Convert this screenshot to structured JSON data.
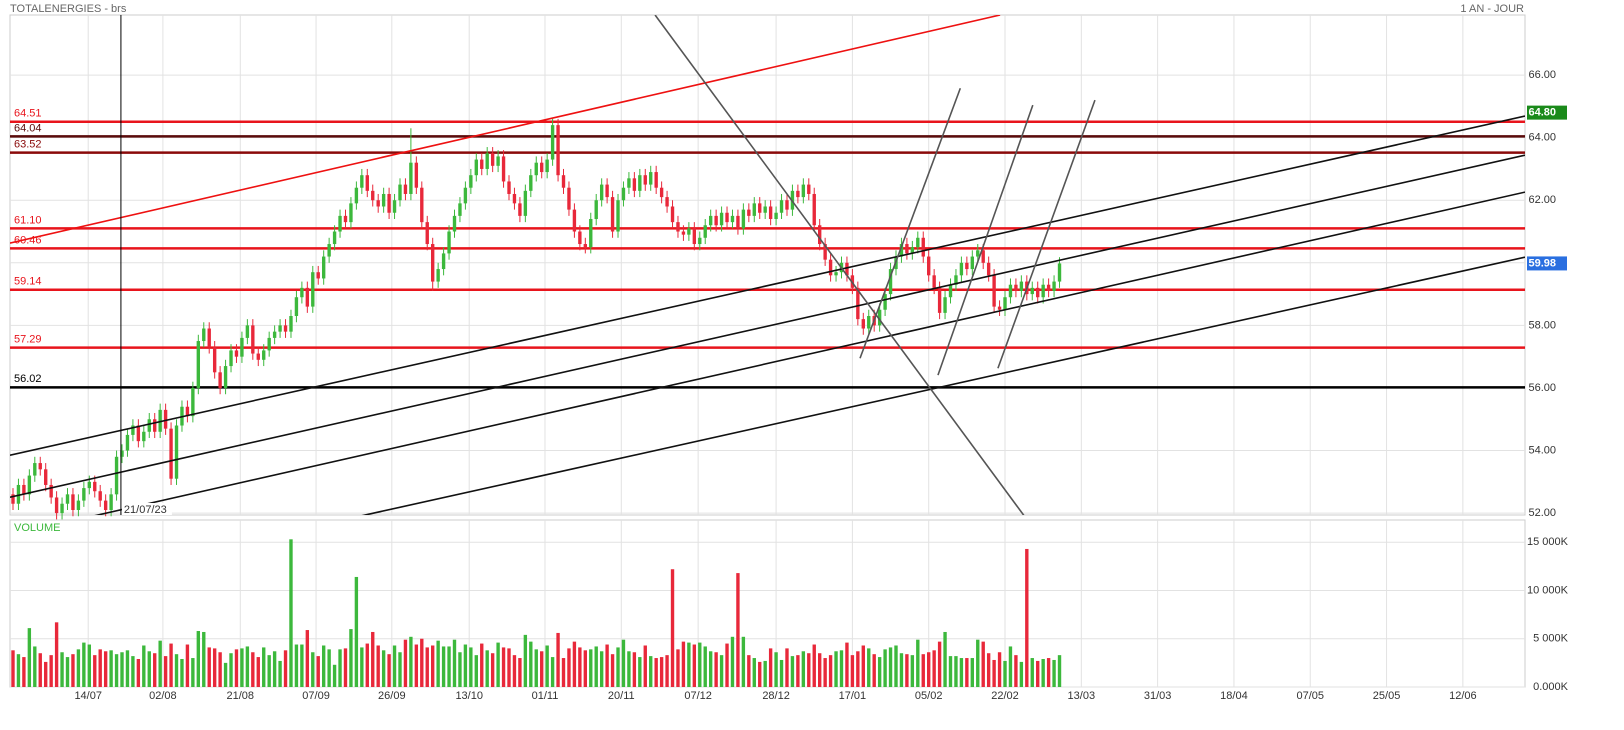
{
  "chart_data": {
    "type": "candlestick",
    "title": "TOTALENERGIES - brs",
    "period": "1 AN - JOUR",
    "up_color": "#3cb83c",
    "down_color": "#e8283a",
    "grid": true,
    "xlim": [
      -0.55,
      277.4
    ],
    "xticks": [
      {
        "value": 13.8,
        "label": "14/07"
      },
      {
        "value": 27.5,
        "label": "02/08"
      },
      {
        "value": 41.7,
        "label": "21/08"
      },
      {
        "value": 55.6,
        "label": "07/09"
      },
      {
        "value": 69.5,
        "label": "26/09"
      },
      {
        "value": 83.7,
        "label": "13/10"
      },
      {
        "value": 97.6,
        "label": "01/11"
      },
      {
        "value": 111.6,
        "label": "20/11"
      },
      {
        "value": 125.7,
        "label": "07/12"
      },
      {
        "value": 140,
        "label": "28/12"
      },
      {
        "value": 154,
        "label": "17/01"
      },
      {
        "value": 168,
        "label": "05/02"
      },
      {
        "value": 182,
        "label": "22/02"
      },
      {
        "value": 196,
        "label": "13/03"
      },
      {
        "value": 210,
        "label": "31/03"
      },
      {
        "value": 224,
        "label": "18/04"
      },
      {
        "value": 238,
        "label": "07/05"
      },
      {
        "value": 252,
        "label": "25/05"
      },
      {
        "value": 266,
        "label": "12/06"
      }
    ],
    "ylim": [
      51.94,
      67.92
    ],
    "yticks": [
      {
        "value": 52,
        "label": "52.00"
      },
      {
        "value": 54,
        "label": "54.00"
      },
      {
        "value": 56,
        "label": "56.00"
      },
      {
        "value": 58,
        "label": "58.00"
      },
      {
        "value": 60,
        "label": "60.00"
      },
      {
        "value": 62,
        "label": "62.00"
      },
      {
        "value": 64,
        "label": "64.00"
      },
      {
        "value": 66,
        "label": "66.00"
      }
    ],
    "open": [
      52.6,
      52.3,
      52.9,
      52.6,
      53.2,
      53.6,
      53.4,
      52.9,
      52.5,
      52.0,
      52.3,
      52.6,
      52.1,
      52.4,
      52.8,
      53.0,
      52.7,
      52.4,
      52.1,
      52.6,
      53.8,
      54.0,
      54.5,
      54.8,
      54.3,
      54.6,
      55.0,
      54.6,
      55.3,
      54.7,
      53.1,
      54.8,
      55.4,
      55.1,
      56.0,
      57.5,
      57.9,
      57.3,
      56.5,
      56.0,
      56.7,
      57.2,
      57.0,
      57.6,
      58.0,
      57.1,
      56.9,
      57.2,
      57.6,
      57.8,
      58.0,
      57.8,
      58.3,
      58.9,
      59.2,
      58.6,
      59.7,
      59.5,
      60.2,
      60.6,
      61.0,
      61.5,
      61.3,
      61.9,
      62.4,
      62.8,
      62.3,
      62.0,
      61.8,
      62.2,
      61.6,
      62.0,
      62.5,
      62.2,
      63.2,
      62.4,
      61.3,
      60.6,
      59.4,
      59.8,
      60.3,
      61.0,
      61.5,
      61.9,
      62.4,
      62.8,
      63.3,
      63.0,
      63.5,
      63.1,
      63.4,
      62.6,
      62.2,
      61.9,
      61.5,
      62.3,
      62.8,
      63.2,
      62.9,
      63.3,
      64.4,
      62.8,
      62.4,
      61.7,
      61.0,
      60.6,
      60.5,
      61.4,
      62.0,
      62.5,
      62.1,
      61.0,
      62.0,
      62.4,
      62.7,
      62.3,
      62.8,
      62.5,
      62.9,
      62.4,
      62.1,
      61.8,
      61.3,
      61.0,
      60.9,
      61.1,
      60.6,
      60.8,
      61.2,
      61.5,
      61.2,
      61.6,
      61.3,
      61.5,
      61.1,
      61.7,
      61.5,
      61.9,
      61.6,
      61.8,
      61.4,
      61.6,
      62.0,
      61.7,
      62.3,
      62.1,
      62.5,
      62.2,
      61.2,
      60.6,
      60.1,
      59.6,
      59.7,
      60.0,
      59.6,
      59.2,
      58.2,
      57.9,
      58.3,
      58.0,
      58.5,
      59.0,
      59.8,
      60.2,
      60.6,
      60.3,
      60.5,
      60.8,
      60.2,
      59.6,
      59.2,
      58.4,
      58.9,
      59.3,
      59.6,
      60.0,
      59.8,
      60.2,
      60.4,
      60.0,
      59.6,
      58.6,
      58.5,
      58.9,
      59.3,
      59.1,
      59.4,
      59.0,
      59.2,
      58.9,
      59.3,
      59.1,
      59.4
    ],
    "high": [
      52.8,
      53.1,
      53.1,
      53.4,
      53.8,
      53.8,
      53.6,
      53.1,
      52.7,
      52.5,
      52.8,
      52.8,
      52.6,
      53.0,
      53.2,
      53.2,
      52.9,
      52.6,
      52.8,
      54.0,
      54.2,
      54.7,
      55.0,
      55.0,
      54.8,
      55.2,
      55.2,
      55.5,
      55.5,
      54.9,
      55.0,
      55.6,
      55.6,
      56.2,
      57.7,
      58.1,
      58.1,
      57.5,
      56.7,
      56.9,
      57.4,
      57.4,
      57.8,
      58.2,
      58.2,
      57.3,
      57.4,
      57.8,
      58.0,
      58.2,
      58.2,
      58.5,
      59.1,
      59.4,
      59.4,
      59.9,
      59.9,
      60.4,
      60.8,
      61.2,
      61.7,
      61.7,
      62.1,
      62.6,
      63.0,
      63.0,
      62.5,
      62.2,
      62.4,
      62.4,
      62.2,
      62.7,
      62.7,
      64.3,
      63.4,
      62.6,
      61.5,
      60.8,
      60.0,
      60.5,
      61.2,
      61.7,
      62.1,
      62.6,
      63.0,
      63.5,
      63.5,
      63.7,
      63.7,
      63.6,
      63.6,
      62.8,
      62.4,
      62.1,
      62.5,
      63.0,
      63.4,
      63.4,
      63.5,
      64.6,
      64.6,
      63.0,
      62.6,
      61.9,
      61.2,
      60.8,
      61.6,
      62.2,
      62.7,
      62.7,
      62.3,
      62.2,
      62.6,
      62.9,
      62.9,
      63.0,
      63.0,
      63.1,
      63.1,
      62.6,
      62.3,
      62.0,
      61.5,
      61.2,
      61.3,
      61.3,
      61.0,
      61.4,
      61.7,
      61.7,
      61.8,
      61.8,
      61.7,
      61.7,
      61.9,
      61.9,
      62.1,
      62.1,
      62.0,
      62.0,
      61.8,
      62.2,
      62.2,
      62.5,
      62.5,
      62.7,
      62.7,
      62.4,
      61.4,
      60.8,
      60.3,
      59.9,
      60.2,
      60.2,
      59.8,
      59.4,
      58.4,
      58.5,
      58.5,
      58.7,
      59.2,
      60.0,
      60.4,
      60.8,
      60.8,
      60.7,
      61.0,
      61.0,
      60.4,
      59.8,
      59.4,
      59.1,
      59.5,
      59.8,
      60.2,
      60.2,
      60.4,
      60.6,
      60.6,
      60.2,
      59.8,
      58.8,
      59.1,
      59.5,
      59.5,
      59.6,
      59.6,
      59.4,
      59.4,
      59.5,
      59.5,
      59.6,
      60.18
    ],
    "low": [
      52.1,
      52.1,
      52.4,
      52.4,
      53.0,
      53.2,
      52.7,
      52.3,
      51.8,
      51.8,
      52.1,
      51.9,
      51.9,
      52.2,
      52.6,
      52.5,
      52.2,
      51.9,
      51.9,
      52.4,
      53.6,
      53.8,
      54.3,
      54.1,
      54.1,
      54.4,
      54.4,
      54.4,
      54.5,
      52.9,
      52.9,
      54.6,
      54.9,
      54.9,
      55.8,
      57.3,
      57.1,
      56.3,
      55.8,
      55.8,
      56.5,
      56.8,
      56.8,
      57.4,
      56.9,
      56.7,
      56.7,
      57.0,
      57.4,
      57.6,
      57.6,
      57.6,
      58.1,
      58.7,
      58.4,
      58.4,
      59.3,
      59.3,
      60.0,
      60.4,
      60.8,
      61.1,
      61.1,
      61.7,
      62.2,
      62.1,
      61.8,
      61.6,
      61.6,
      61.4,
      61.4,
      61.8,
      62.0,
      62.0,
      62.2,
      61.1,
      60.4,
      59.1,
      59.2,
      59.6,
      60.1,
      60.8,
      61.3,
      61.7,
      62.2,
      62.6,
      62.8,
      62.8,
      62.9,
      62.9,
      62.4,
      62.0,
      61.7,
      61.3,
      61.3,
      62.1,
      62.6,
      62.7,
      62.7,
      63.1,
      62.6,
      62.2,
      61.5,
      60.8,
      60.4,
      60.3,
      60.3,
      61.2,
      61.8,
      61.9,
      60.8,
      60.8,
      61.8,
      62.2,
      62.1,
      62.1,
      62.3,
      62.3,
      62.2,
      61.9,
      61.6,
      61.1,
      60.8,
      60.7,
      60.7,
      60.4,
      60.4,
      60.6,
      61.0,
      61.0,
      61.0,
      61.1,
      61.1,
      60.9,
      60.9,
      61.3,
      61.3,
      61.4,
      61.4,
      61.2,
      61.2,
      61.4,
      61.5,
      61.5,
      61.9,
      61.9,
      62.0,
      61.0,
      60.4,
      59.9,
      59.4,
      59.4,
      59.5,
      59.4,
      59.0,
      58.0,
      57.7,
      57.7,
      57.8,
      57.8,
      58.3,
      58.8,
      59.6,
      60.0,
      60.1,
      60.1,
      60.3,
      60.0,
      59.4,
      59.0,
      58.2,
      58.2,
      58.7,
      59.1,
      59.4,
      59.6,
      59.6,
      60.0,
      59.8,
      59.4,
      58.4,
      58.3,
      58.3,
      58.7,
      58.9,
      58.9,
      58.8,
      58.8,
      58.7,
      58.7,
      58.9,
      58.9,
      59.2
    ],
    "close": [
      52.3,
      52.9,
      52.6,
      53.2,
      53.6,
      53.4,
      52.9,
      52.5,
      52.0,
      52.3,
      52.6,
      52.1,
      52.4,
      52.8,
      53.0,
      52.7,
      52.4,
      52.1,
      52.6,
      53.8,
      54.0,
      54.5,
      54.8,
      54.3,
      54.6,
      55.0,
      54.6,
      55.3,
      54.7,
      53.1,
      54.8,
      55.4,
      55.1,
      56.0,
      57.5,
      57.9,
      57.3,
      56.5,
      56.0,
      56.7,
      57.2,
      57.0,
      57.6,
      58.0,
      57.1,
      56.9,
      57.2,
      57.6,
      57.8,
      58.0,
      57.8,
      58.3,
      58.9,
      59.2,
      58.6,
      59.7,
      59.5,
      60.2,
      60.6,
      61.0,
      61.5,
      61.3,
      61.9,
      62.4,
      62.8,
      62.3,
      62.0,
      61.8,
      62.2,
      61.6,
      62.0,
      62.5,
      62.2,
      63.2,
      62.4,
      61.3,
      60.6,
      59.4,
      59.8,
      60.3,
      61.0,
      61.5,
      61.9,
      62.4,
      62.8,
      63.3,
      63.0,
      63.5,
      63.1,
      63.4,
      62.6,
      62.2,
      61.9,
      61.5,
      62.3,
      62.8,
      63.2,
      62.9,
      63.3,
      64.4,
      62.8,
      62.4,
      61.7,
      61.0,
      60.6,
      60.5,
      61.4,
      62.0,
      62.5,
      62.1,
      61.0,
      62.0,
      62.4,
      62.7,
      62.3,
      62.8,
      62.5,
      62.9,
      62.4,
      62.1,
      61.8,
      61.3,
      61.0,
      60.9,
      61.1,
      60.6,
      60.8,
      61.2,
      61.5,
      61.2,
      61.6,
      61.3,
      61.5,
      61.1,
      61.7,
      61.5,
      61.9,
      61.6,
      61.8,
      61.4,
      61.6,
      62.0,
      61.7,
      62.3,
      62.1,
      62.5,
      62.2,
      61.2,
      60.6,
      60.1,
      59.6,
      59.7,
      60.0,
      59.6,
      59.2,
      58.2,
      57.9,
      58.3,
      58.0,
      58.5,
      59.0,
      59.8,
      60.2,
      60.6,
      60.3,
      60.5,
      60.8,
      60.2,
      59.6,
      59.2,
      58.4,
      58.9,
      59.3,
      59.6,
      60.0,
      59.8,
      60.2,
      60.4,
      60.0,
      59.6,
      58.6,
      58.5,
      58.9,
      59.3,
      59.1,
      59.4,
      59.0,
      59.2,
      58.9,
      59.3,
      59.1,
      59.4,
      59.98
    ],
    "levels": [
      {
        "value": 64.51,
        "color": "#e8141c"
      },
      {
        "value": 64.04,
        "color": "#5a0a0a"
      },
      {
        "value": 63.52,
        "color": "#8a0a0a"
      },
      {
        "value": 61.1,
        "label": "61.10",
        "color": "#e8141c"
      },
      {
        "value": 60.46,
        "color": "#e8141c"
      },
      {
        "value": 59.14,
        "color": "#e8141c"
      },
      {
        "value": 57.29,
        "color": "#e8141c"
      },
      {
        "value": 56.02,
        "color": "#000000"
      }
    ],
    "trendlines": [
      {
        "color": "#ee1111",
        "points": [
          [
            -0.55,
            60.63
          ],
          [
            181.1,
            67.92
          ]
        ]
      },
      {
        "color": "#111111",
        "points": [
          [
            -0.55,
            53.85
          ],
          [
            277.4,
            64.69
          ]
        ]
      },
      {
        "color": "#111111",
        "points": [
          [
            -0.55,
            52.51
          ],
          [
            277.4,
            63.44
          ]
        ]
      },
      {
        "color": "#111111",
        "points": [
          [
            13.8,
            51.87
          ],
          [
            277.4,
            62.26
          ]
        ]
      },
      {
        "color": "#111111",
        "points": [
          [
            62.8,
            51.87
          ],
          [
            277.4,
            60.18
          ]
        ]
      },
      {
        "color": "#555555",
        "points": [
          [
            117.8,
            67.92
          ],
          [
            185.7,
            51.87
          ]
        ]
      },
      {
        "color": "#555555",
        "points": [
          [
            155.4,
            56.95
          ],
          [
            173.8,
            65.58
          ]
        ]
      },
      {
        "color": "#555555",
        "points": [
          [
            169.7,
            56.41
          ],
          [
            187.1,
            65.04
          ]
        ]
      },
      {
        "color": "#555555",
        "points": [
          [
            180.7,
            56.63
          ],
          [
            198.5,
            65.2
          ]
        ]
      }
    ],
    "cursor": {
      "x": 19.8,
      "label": "21/07/23"
    },
    "price_tags": [
      {
        "value": 64.8,
        "label": "64.80",
        "color": "#1a8a1a"
      },
      {
        "value": 59.98,
        "label": "59.98",
        "color": "#2a6fe0"
      }
    ],
    "volume": {
      "label": "VOLUME",
      "ylim": [
        0,
        17300
      ],
      "yticks": [
        {
          "value": 0,
          "label": "0.000K"
        },
        {
          "value": 5000,
          "label": "5 000K"
        },
        {
          "value": 10000,
          "label": "10 000K"
        },
        {
          "value": 15000,
          "label": "15 000K"
        }
      ],
      "values": [
        3800,
        3400,
        3100,
        6100,
        4200,
        3500,
        2600,
        3300,
        6700,
        3600,
        3100,
        3400,
        3900,
        4600,
        4400,
        3300,
        3900,
        3700,
        3800,
        3400,
        3600,
        3800,
        3200,
        2900,
        4300,
        3700,
        3500,
        4800,
        3200,
        4500,
        3400,
        2900,
        4400,
        3000,
        5800,
        5700,
        4100,
        4000,
        3600,
        2500,
        3500,
        3900,
        4000,
        4200,
        3600,
        3100,
        4100,
        3300,
        3700,
        2700,
        3800,
        15300,
        4400,
        4400,
        5900,
        3600,
        3200,
        4300,
        3900,
        2300,
        3900,
        4000,
        6000,
        11400,
        4100,
        4500,
        5700,
        4300,
        3800,
        3400,
        4300,
        3600,
        4900,
        5200,
        4400,
        5000,
        4100,
        4300,
        4800,
        4200,
        4200,
        4900,
        3600,
        4400,
        4100,
        3300,
        4500,
        3800,
        3500,
        4600,
        4100,
        4000,
        3300,
        3000,
        5400,
        4700,
        3900,
        3700,
        4300,
        3100,
        5600,
        3000,
        4000,
        4700,
        4100,
        3800,
        3900,
        4200,
        3700,
        4400,
        3400,
        4100,
        4900,
        3700,
        3600,
        3100,
        4300,
        3200,
        3000,
        3100,
        3300,
        12200,
        3900,
        4700,
        4600,
        4400,
        4600,
        4200,
        3700,
        3600,
        3300,
        4500,
        5200,
        11800,
        5200,
        3300,
        3000,
        2600,
        2700,
        4000,
        3600,
        2800,
        4000,
        3200,
        3300,
        3700,
        3500,
        4400,
        3500,
        3000,
        3300,
        3700,
        3800,
        4600,
        3300,
        3700,
        4300,
        4000,
        3400,
        3100,
        3900,
        4100,
        4300,
        3500,
        3400,
        3300,
        4900,
        3400,
        3600,
        3800,
        4700,
        5700,
        3200,
        3200,
        3000,
        3000,
        3000,
        4900,
        4700,
        3500,
        2800,
        3600,
        2700,
        4200,
        3300,
        2600,
        14300,
        3000,
        2700,
        2900,
        3000,
        2800,
        3300
      ]
    }
  }
}
